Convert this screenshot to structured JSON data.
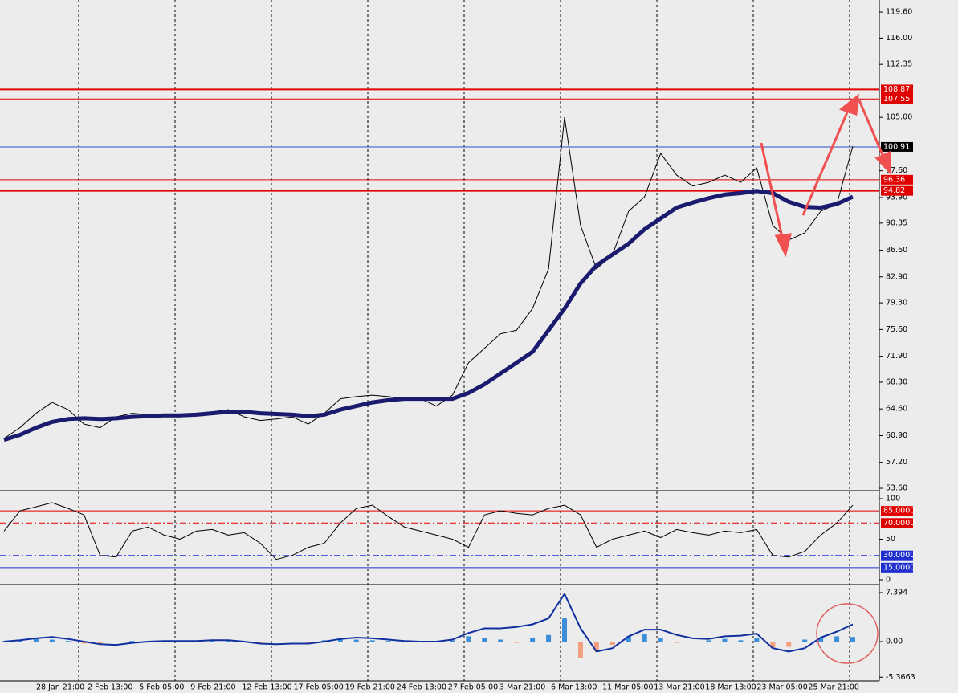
{
  "chart_data": [
    {
      "type": "line",
      "ylim": [
        53.38,
        121.05
      ],
      "yticks": [
        {
          "value": 119.6,
          "label": "119.60"
        },
        {
          "value": 116,
          "label": "116.00"
        },
        112.35,
        {
          "value": 105,
          "label": "105.00"
        },
        {
          "value": 97.6,
          "label": "97.60"
        },
        {
          "value": 93.9,
          "label": "93.90"
        },
        90.35,
        {
          "value": 86.6,
          "label": "86.60"
        },
        {
          "value": 82.9,
          "label": "82.90"
        },
        {
          "value": 79.3,
          "label": "79.30"
        },
        {
          "value": 75.6,
          "label": "75.60"
        },
        {
          "value": 71.9,
          "label": "71.90"
        },
        {
          "value": 68.3,
          "label": "68.30"
        },
        {
          "value": 64.6,
          "label": "64.60"
        },
        {
          "value": 60.9,
          "label": "60.90"
        },
        {
          "value": 57.2,
          "label": "57.20"
        },
        {
          "value": 53.6,
          "label": "53.60"
        }
      ],
      "levels": [
        {
          "value": 108.87,
          "label": "108.87",
          "color": "#e00000",
          "width": 2,
          "style": "solid"
        },
        {
          "value": 107.55,
          "label": "107.55",
          "color": "#e00000",
          "width": 1,
          "style": "solid"
        },
        {
          "value": 100.91,
          "label": "100.91",
          "color": "#3050c8",
          "label_color": "#000000",
          "width": 1,
          "style": "solid"
        },
        {
          "value": 96.36,
          "label": "96.36",
          "color": "#e00000",
          "width": 1,
          "style": "solid"
        },
        {
          "value": 94.82,
          "label": "94.82",
          "color": "#e00000",
          "width": 2,
          "style": "solid"
        }
      ],
      "series": [
        {
          "type": "line",
          "color": "#000000",
          "width": 1,
          "values": [
            60.5,
            62,
            64,
            65.5,
            64.5,
            62.5,
            62,
            63.5,
            64,
            63.8,
            63.5,
            63.5,
            64,
            64.2,
            64.5,
            63.5,
            63,
            63.2,
            63.5,
            62.5,
            64,
            66,
            66.3,
            66.5,
            66.3,
            66,
            66,
            65,
            66.5,
            71,
            73,
            75,
            75.5,
            78.5,
            84,
            105,
            90,
            84,
            86,
            92,
            94,
            100,
            97,
            95.5,
            96,
            97,
            96,
            98,
            90,
            88,
            89,
            92,
            93,
            101
          ]
        },
        {
          "type": "line",
          "color": "#1a1a6e",
          "width": 5,
          "values": [
            60.3,
            61,
            62,
            62.8,
            63.2,
            63.3,
            63.2,
            63.3,
            63.5,
            63.6,
            63.7,
            63.7,
            63.8,
            64,
            64.2,
            64.2,
            64,
            63.9,
            63.8,
            63.6,
            63.8,
            64.5,
            65,
            65.5,
            65.8,
            66,
            66,
            66,
            66,
            66.8,
            68,
            69.5,
            71,
            72.5,
            75.5,
            78.5,
            82,
            84.5,
            86,
            87.5,
            89.5,
            91,
            92.5,
            93.2,
            93.8,
            94.3,
            94.5,
            94.8,
            94.5,
            93.3,
            92.6,
            92.5,
            93,
            94
          ]
        }
      ],
      "time_labels": [
        "28 Jan 21:00",
        "2 Feb 13:00",
        "5 Feb 05:00",
        "9 Feb 21:00",
        "12 Feb 13:00",
        "17 Feb 05:00",
        "19 Feb 21:00",
        "24 Feb 13:00",
        "27 Feb 05:00",
        "3 Mar 21:00",
        "6 Mar 13:00",
        "11 Mar 05:00",
        "13 Mar 21:00",
        "18 Mar 13:00",
        "23 Mar 05:00",
        "25 Mar 21:00"
      ]
    },
    {
      "type": "line",
      "ylim": [
        -4.95,
        107.9
      ],
      "yticks": [
        100,
        50,
        0
      ],
      "levels": [
        {
          "value": 85,
          "label": "85.0000",
          "color": "#e00000",
          "width": 1,
          "style": "solid"
        },
        {
          "value": 70,
          "label": "70.0000",
          "color": "#e00000",
          "width": 1,
          "style": "dashdot"
        },
        {
          "value": 30,
          "label": "30.0000",
          "color": "#2030d0",
          "width": 1,
          "style": "dashdot"
        },
        {
          "value": 15,
          "label": "15.0000",
          "color": "#2030d0",
          "width": 1,
          "style": "solid"
        }
      ],
      "series": [
        {
          "type": "line",
          "color": "#000000",
          "width": 1,
          "values": [
            60,
            85,
            90,
            95,
            88,
            80,
            30,
            28,
            60,
            65,
            55,
            50,
            60,
            62,
            55,
            58,
            45,
            25,
            30,
            40,
            45,
            70,
            88,
            92,
            78,
            65,
            60,
            55,
            50,
            40,
            80,
            85,
            82,
            80,
            88,
            92,
            80,
            40,
            50,
            55,
            60,
            52,
            62,
            58,
            55,
            60,
            58,
            62,
            30,
            28,
            35,
            55,
            70,
            92
          ]
        }
      ]
    },
    {
      "type": "bar",
      "ylim": [
        -5.94,
        8.364
      ],
      "yticks": [
        7.394,
        {
          "value": 0,
          "label": "0.00"
        },
        -5.3663
      ],
      "levels": [],
      "series": [
        {
          "type": "bar",
          "color": "#3a8fd8",
          "neg_color": "#f4a080",
          "values": [
            0.1,
            0.2,
            0.4,
            0.3,
            0.1,
            -0.3,
            -0.3,
            -0.1,
            0.1,
            0.1,
            0,
            0,
            0.1,
            0.1,
            0.1,
            -0.1,
            -0.2,
            -0.1,
            -0.1,
            -0.2,
            0.2,
            0.4,
            0.3,
            0.2,
            0.1,
            0,
            0,
            -0.1,
            0.2,
            0.8,
            0.6,
            0.3,
            -0.2,
            0.5,
            1,
            3.5,
            -2.5,
            -1.5,
            -0.5,
            0.8,
            1.2,
            0.6,
            -0.2,
            -0.1,
            0.2,
            0.4,
            0.2,
            0.5,
            -1,
            -0.8,
            0.3,
            0.6,
            0.8,
            0.7
          ]
        },
        {
          "type": "line",
          "color": "#1030a0",
          "width": 2,
          "values": [
            0,
            0.2,
            0.5,
            0.7,
            0.4,
            0,
            -0.4,
            -0.5,
            -0.2,
            0,
            0.1,
            0.1,
            0.1,
            0.2,
            0.2,
            0,
            -0.3,
            -0.4,
            -0.3,
            -0.3,
            0,
            0.4,
            0.6,
            0.5,
            0.3,
            0.1,
            0,
            0,
            0.3,
            1.3,
            2,
            2,
            2.2,
            2.6,
            3.5,
            7.2,
            2,
            -1.5,
            -1,
            0.8,
            1.8,
            1.8,
            1,
            0.5,
            0.4,
            0.8,
            0.9,
            1.2,
            -1,
            -1.5,
            -1,
            0.6,
            1.5,
            2.6
          ]
        }
      ]
    }
  ]
}
